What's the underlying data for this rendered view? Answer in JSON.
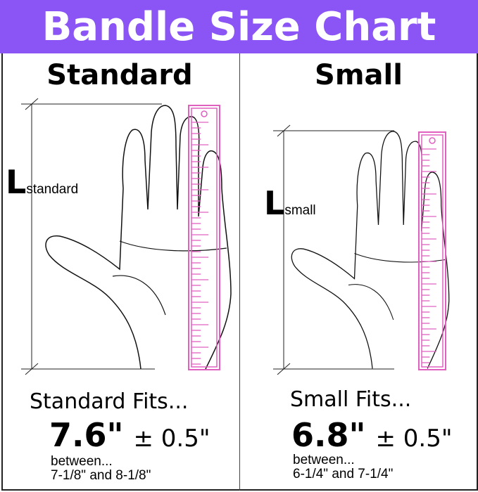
{
  "title": "Bandle Size Chart",
  "colors": {
    "header": "#8b55f6",
    "ruler": "#e060c0",
    "text": "#000000"
  },
  "columns": [
    {
      "heading": "Standard",
      "length_label": "L",
      "length_sub": "standard",
      "fits_label": "Standard Fits...",
      "value": "7.6\"",
      "tolerance": "± 0.5\"",
      "between_label": "between...",
      "range": "7-1/8\" and 8-1/8\""
    },
    {
      "heading": "Small",
      "length_label": "L",
      "length_sub": "small",
      "fits_label": "Small Fits...",
      "value": "6.8\"",
      "tolerance": "± 0.5\"",
      "between_label": "between...",
      "range": "6-1/4\" and 7-1/4\""
    }
  ]
}
